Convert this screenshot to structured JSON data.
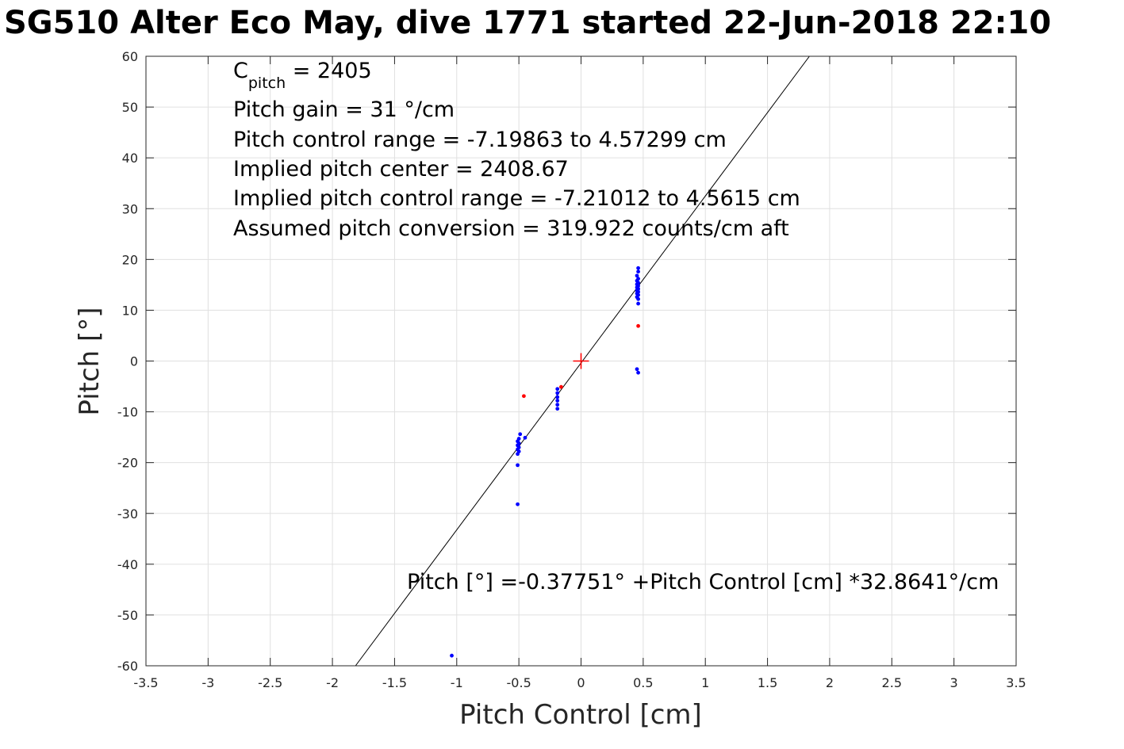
{
  "title": "SG510 Alter Eco May, dive 1771 started 22-Jun-2018 22:10",
  "chart_data": {
    "type": "scatter",
    "xlabel": "Pitch Control [cm]",
    "ylabel": "Pitch [°]",
    "xlim": [
      -3.5,
      3.5
    ],
    "ylim": [
      -60,
      60
    ],
    "xticks": [
      -3.5,
      -3,
      -2.5,
      -2,
      -1.5,
      -1,
      -0.5,
      0,
      0.5,
      1,
      1.5,
      2,
      2.5,
      3,
      3.5
    ],
    "yticks": [
      -60,
      -50,
      -40,
      -30,
      -20,
      -10,
      0,
      10,
      20,
      30,
      40,
      50,
      60
    ],
    "grid": true,
    "annotations": {
      "c_pitch_main": "C",
      "c_pitch_sub": "pitch",
      "c_pitch_value": " = 2405",
      "lines": [
        "Pitch gain = 31 °/cm",
        "Pitch control range = -7.19863 to 4.57299 cm",
        "Implied pitch center = 2408.67",
        "Implied pitch control range = -7.21012 to 4.5615 cm",
        "Assumed pitch conversion = 319.922 counts/cm aft"
      ],
      "fit_equation": "Pitch [°] =-0.37751° +Pitch Control [cm] *32.8641°/cm"
    },
    "fit_line": {
      "intercept": -0.37751,
      "slope": 32.8641,
      "color": "#000000"
    },
    "center_marker": {
      "x": 0,
      "y": 0,
      "color": "#ff0000"
    },
    "series": [
      {
        "color": "#0000ff",
        "points": [
          [
            0.46,
            18.3
          ],
          [
            0.46,
            17.6
          ],
          [
            0.45,
            16.8
          ],
          [
            0.46,
            16.2
          ],
          [
            0.45,
            15.8
          ],
          [
            0.46,
            15.4
          ],
          [
            0.45,
            15.1
          ],
          [
            0.46,
            14.8
          ],
          [
            0.45,
            14.5
          ],
          [
            0.46,
            14.2
          ],
          [
            0.45,
            13.9
          ],
          [
            0.46,
            13.6
          ],
          [
            0.45,
            13.3
          ],
          [
            0.46,
            13.0
          ],
          [
            0.45,
            12.6
          ],
          [
            0.46,
            12.2
          ],
          [
            0.46,
            11.3
          ],
          [
            0.45,
            -1.6
          ],
          [
            0.46,
            -2.3
          ],
          [
            -0.19,
            -5.5
          ],
          [
            -0.19,
            -6.3
          ],
          [
            -0.19,
            -7.1
          ],
          [
            -0.19,
            -7.8
          ],
          [
            -0.19,
            -8.6
          ],
          [
            -0.19,
            -9.4
          ],
          [
            -0.49,
            -14.4
          ],
          [
            -0.45,
            -15.1
          ],
          [
            -0.5,
            -15.3
          ],
          [
            -0.51,
            -15.8
          ],
          [
            -0.5,
            -16.2
          ],
          [
            -0.51,
            -16.6
          ],
          [
            -0.5,
            -17.0
          ],
          [
            -0.51,
            -17.4
          ],
          [
            -0.5,
            -17.8
          ],
          [
            -0.51,
            -18.3
          ],
          [
            -0.51,
            -20.5
          ],
          [
            -0.51,
            -28.2
          ],
          [
            -1.04,
            -58.0
          ]
        ]
      },
      {
        "color": "#ff0000",
        "points": [
          [
            0.46,
            6.9
          ],
          [
            -0.46,
            -6.9
          ],
          [
            -0.16,
            -5.1
          ]
        ]
      }
    ]
  }
}
